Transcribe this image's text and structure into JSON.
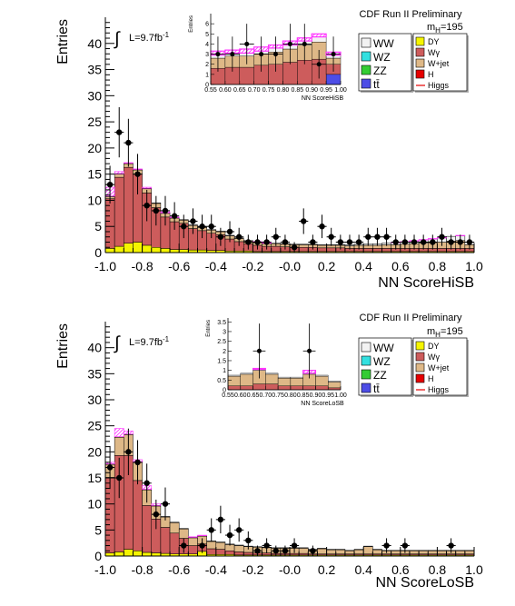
{
  "figure_label": "CDF Run II Preliminary",
  "mass_label": "m",
  "mass_sub": "H",
  "mass_value": "=195",
  "lumi_prefix": "L=9.7fb",
  "lumi_sup": "-1",
  "integral_glyph": "∫",
  "colors": {
    "WW": "#f2f2f2",
    "WZ": "#33e0e0",
    "ZZ": "#33cc33",
    "tt": "#4d4de6",
    "DY": "#f5f500",
    "Wgamma": "#cd5c5c",
    "Wjet": "#deb887",
    "H": "#e60000",
    "Higgs": "#ff33ff",
    "data": "#000000"
  },
  "chart_data": [
    {
      "type": "bar",
      "name": "HiSB",
      "xlabel": "NN ScoreHiSB",
      "ylabel": "Entries",
      "xlim": [
        -1.0,
        1.0
      ],
      "ylim": [
        0,
        45
      ],
      "x_ticks": [
        "-1.0",
        "-0.8",
        "-0.6",
        "-0.4",
        "-0.2",
        "-0.0",
        "0.2",
        "0.4",
        "0.6",
        "0.8",
        "1.0"
      ],
      "y_ticks": [
        "0",
        "5",
        "10",
        "15",
        "20",
        "25",
        "30",
        "35",
        "40"
      ],
      "legend": {
        "left": [
          {
            "key": "WW",
            "label": "WW"
          },
          {
            "key": "WZ",
            "label": "WZ"
          },
          {
            "key": "ZZ",
            "label": "ZZ"
          },
          {
            "key": "tt",
            "label": "tt̄"
          }
        ],
        "right": [
          {
            "key": "DY",
            "label": "DY"
          },
          {
            "key": "Wgamma",
            "label": "Wγ"
          },
          {
            "key": "Wjet",
            "label": "W+jet"
          },
          {
            "key": "H",
            "label": "H"
          },
          {
            "key": "Higgs",
            "label": "Higgs"
          }
        ]
      },
      "bins": 40,
      "dy": [
        0.8,
        1.2,
        1.8,
        2.0,
        1.4,
        1.0,
        0.8,
        0.6,
        0.6,
        0.5,
        0.5,
        0.4,
        0.4,
        0.3,
        0.3,
        0.3,
        0.2,
        0.2,
        0.2,
        0.2,
        0.2,
        0.2,
        0.2,
        0.2,
        0.2,
        0.2,
        0.2,
        0.2,
        0.2,
        0.2,
        0.2,
        0.2,
        0.2,
        0.2,
        0.2,
        0.2,
        0.2,
        0.2,
        0.2,
        0.2
      ],
      "wgamma": [
        9.5,
        13.2,
        14.5,
        13.0,
        10.0,
        7.6,
        6.0,
        5.3,
        5.0,
        4.1,
        3.7,
        3.3,
        3.0,
        2.3,
        1.8,
        1.4,
        1.2,
        1.0,
        1.0,
        0.9,
        0.8,
        0.8,
        0.8,
        0.7,
        0.7,
        0.7,
        0.6,
        0.6,
        0.6,
        0.6,
        0.6,
        0.6,
        0.6,
        0.6,
        0.6,
        0.6,
        0.6,
        0.6,
        0.6,
        0.6
      ],
      "wjet": [
        0.4,
        0.6,
        0.7,
        0.8,
        0.8,
        0.8,
        0.7,
        0.7,
        0.6,
        0.6,
        0.6,
        0.6,
        0.6,
        0.6,
        0.6,
        0.5,
        0.5,
        0.5,
        0.5,
        0.5,
        0.5,
        0.5,
        0.5,
        0.5,
        0.5,
        0.5,
        0.5,
        0.6,
        0.6,
        0.6,
        0.7,
        0.7,
        0.8,
        0.9,
        1.0,
        1.1,
        1.2,
        1.4,
        1.5,
        0.7
      ],
      "ww": [
        0.1,
        0.1,
        0.1,
        0.1,
        0.1,
        0.1,
        0.1,
        0.1,
        0.1,
        0.1,
        0.1,
        0.1,
        0.1,
        0.1,
        0.1,
        0.1,
        0.1,
        0.1,
        0.1,
        0.1,
        0.1,
        0.1,
        0.1,
        0.1,
        0.1,
        0.1,
        0.2,
        0.2,
        0.2,
        0.3,
        0.3,
        0.4,
        0.4,
        0.5,
        0.6,
        0.7,
        0.8,
        0.9,
        0.9,
        0.5
      ],
      "higgs": [
        12.5,
        15.5,
        17.2,
        16.0,
        12.5,
        9.2,
        7.8,
        6.8,
        6.2,
        5.1,
        4.7,
        4.1,
        3.8,
        3.1,
        2.7,
        2.3,
        2.1,
        1.9,
        1.8,
        1.7,
        1.6,
        1.6,
        1.6,
        1.5,
        1.5,
        1.5,
        1.5,
        1.6,
        1.6,
        1.7,
        1.8,
        2.0,
        2.1,
        2.3,
        2.5,
        2.7,
        2.9,
        3.1,
        3.3,
        1.8
      ],
      "data": {
        "x": [
          -0.975,
          -0.925,
          -0.875,
          -0.825,
          -0.775,
          -0.725,
          -0.675,
          -0.625,
          -0.575,
          -0.525,
          -0.475,
          -0.425,
          -0.375,
          -0.325,
          -0.275,
          -0.225,
          -0.175,
          -0.125,
          -0.075,
          -0.025,
          0.025,
          0.075,
          0.125,
          0.175,
          0.225,
          0.275,
          0.325,
          0.375,
          0.425,
          0.475,
          0.525,
          0.575,
          0.625,
          0.675,
          0.725,
          0.775,
          0.825,
          0.875,
          0.925,
          0.975
        ],
        "y": [
          13,
          23,
          21,
          15,
          9,
          8,
          8,
          7,
          5,
          6,
          5,
          5,
          3,
          4,
          3,
          2,
          2,
          2,
          3,
          2,
          1,
          6,
          2,
          5,
          3,
          2,
          2,
          2,
          3,
          3,
          3,
          2,
          2,
          2,
          2,
          2,
          3,
          2,
          2,
          2
        ]
      },
      "inset": {
        "xlabel": "NN ScoreHiSB",
        "ylabel": "Entries",
        "xlim": [
          0.55,
          1.0
        ],
        "ylim": [
          0,
          7
        ],
        "x_ticks": [
          "0.55",
          "0.60",
          "0.65",
          "0.70",
          "0.75",
          "0.80",
          "0.85",
          "0.90",
          "0.95",
          "1.00"
        ],
        "y_ticks": [
          "0",
          "1",
          "2",
          "3",
          "4",
          "5",
          "6"
        ],
        "bins": 9,
        "wgamma": [
          1.6,
          1.7,
          1.7,
          1.9,
          2.0,
          2.2,
          2.4,
          2.5,
          1.0
        ],
        "wjet": [
          1.0,
          1.1,
          1.1,
          1.1,
          1.2,
          1.3,
          1.5,
          1.7,
          0.6
        ],
        "ww": [
          0.3,
          0.3,
          0.3,
          0.3,
          0.4,
          0.4,
          0.4,
          0.5,
          0.3
        ],
        "tt": [
          0.0,
          0.0,
          0.0,
          0.0,
          0.0,
          0.0,
          0.0,
          0.0,
          1.0
        ],
        "higgs": [
          3.3,
          3.4,
          3.5,
          3.7,
          3.9,
          4.3,
          4.6,
          5.0,
          3.2
        ],
        "data": {
          "x": [
            0.575,
            0.625,
            0.675,
            0.725,
            0.775,
            0.825,
            0.875,
            0.925,
            0.975
          ],
          "y": [
            3,
            3,
            4,
            3,
            3,
            4,
            4,
            2,
            3
          ]
        }
      }
    },
    {
      "type": "bar",
      "name": "LoSB",
      "xlabel": "NN ScoreLoSB",
      "ylabel": "Entries",
      "xlim": [
        -1.0,
        1.0
      ],
      "ylim": [
        0,
        45
      ],
      "x_ticks": [
        "-1.0",
        "-0.8",
        "-0.6",
        "-0.4",
        "-0.2",
        "-0.0",
        "0.2",
        "0.4",
        "0.6",
        "0.8",
        "1.0"
      ],
      "y_ticks": [
        "0",
        "5",
        "10",
        "15",
        "20",
        "25",
        "30",
        "35",
        "40"
      ],
      "legend": {
        "left": [
          {
            "key": "WW",
            "label": "WW"
          },
          {
            "key": "WZ",
            "label": "WZ"
          },
          {
            "key": "ZZ",
            "label": "ZZ"
          },
          {
            "key": "tt",
            "label": "tt̄"
          }
        ],
        "right": [
          {
            "key": "DY",
            "label": "DY"
          },
          {
            "key": "Wgamma",
            "label": "Wγ"
          },
          {
            "key": "Wjet",
            "label": "W+jet"
          },
          {
            "key": "H",
            "label": "H"
          },
          {
            "key": "Higgs",
            "label": "Higgs"
          }
        ]
      },
      "bins": 40,
      "dy": [
        0.6,
        0.8,
        1.3,
        1.0,
        0.7,
        0.6,
        0.5,
        0.4,
        0.4,
        0.4,
        0.9,
        0.3,
        0.3,
        0.3,
        0.2,
        0.2,
        0.2,
        0.2,
        0.2,
        0.2,
        0.2,
        0.2,
        0.2,
        0.2,
        0.2,
        0.2,
        0.2,
        0.2,
        0.2,
        0.2,
        0.2,
        0.2,
        0.2,
        0.2,
        0.2,
        0.2,
        0.2,
        0.2,
        0.2,
        0.2
      ],
      "wgamma": [
        14.5,
        18.5,
        18.0,
        13.5,
        9.0,
        6.5,
        5.0,
        4.0,
        3.0,
        1.6,
        1.4,
        1.1,
        1.0,
        0.7,
        0.6,
        0.5,
        0.4,
        0.4,
        0.3,
        0.3,
        0.3,
        0.3,
        0.2,
        0.2,
        0.2,
        0.2,
        0.2,
        0.2,
        0.2,
        0.2,
        0.2,
        0.2,
        0.2,
        0.2,
        0.2,
        0.2,
        0.2,
        0.2,
        0.2,
        0.2
      ],
      "wjet": [
        2.5,
        3.5,
        4.0,
        3.5,
        3.0,
        2.5,
        2.0,
        2.0,
        1.8,
        1.5,
        1.5,
        1.4,
        1.3,
        1.2,
        1.2,
        1.1,
        1.1,
        1.0,
        1.0,
        1.0,
        1.0,
        1.0,
        0.8,
        1.0,
        0.8,
        0.8,
        0.6,
        0.8,
        1.4,
        0.8,
        0.6,
        0.6,
        0.6,
        0.6,
        0.6,
        0.6,
        0.6,
        0.6,
        0.6,
        0.6
      ],
      "ww": [
        0.1,
        0.1,
        0.1,
        0.1,
        0.1,
        0.1,
        0.1,
        0.1,
        0.1,
        0.1,
        0.1,
        0.1,
        0.1,
        0.1,
        0.1,
        0.1,
        0.1,
        0.1,
        0.1,
        0.1,
        0.1,
        0.1,
        0.1,
        0.1,
        0.1,
        0.1,
        0.1,
        0.1,
        0.1,
        0.1,
        0.1,
        0.1,
        0.1,
        0.1,
        0.1,
        0.1,
        0.1,
        0.1,
        0.1,
        0.1
      ],
      "higgs": [
        18.0,
        24.5,
        24.0,
        18.5,
        13.5,
        10.0,
        7.6,
        6.5,
        5.3,
        3.7,
        4.0,
        2.9,
        2.7,
        2.3,
        2.1,
        1.9,
        1.8,
        1.7,
        1.6,
        1.6,
        1.6,
        1.6,
        1.3,
        1.5,
        1.3,
        1.3,
        1.1,
        1.3,
        1.9,
        1.3,
        1.1,
        1.1,
        1.1,
        1.1,
        1.1,
        1.1,
        1.1,
        1.1,
        1.1,
        1.1
      ],
      "data": {
        "x": [
          -0.975,
          -0.925,
          -0.875,
          -0.825,
          -0.775,
          -0.725,
          -0.675,
          -0.575,
          -0.475,
          -0.425,
          -0.375,
          -0.325,
          -0.275,
          -0.225,
          -0.175,
          -0.125,
          -0.075,
          -0.025,
          0.025,
          0.125,
          0.525,
          0.625,
          0.875
        ],
        "y": [
          17,
          15,
          20,
          18,
          14,
          8,
          10,
          2,
          2,
          5,
          7,
          4,
          5,
          3,
          1,
          2,
          1,
          1,
          2,
          1,
          2,
          2,
          2
        ]
      },
      "inset": {
        "xlabel": "NN ScoreLoSB",
        "ylabel": "Entries",
        "xlim": [
          0.55,
          1.0
        ],
        "ylim": [
          0,
          3.7
        ],
        "x_ticks": [
          "0.55",
          "0.60",
          "0.65",
          "0.70",
          "0.75",
          "0.80",
          "0.85",
          "0.90",
          "0.95",
          "1.00"
        ],
        "y_ticks": [
          "0",
          "0.5",
          "1",
          "1.5",
          "2",
          "2.5",
          "3",
          "3.5"
        ],
        "bins": 9,
        "wgamma": [
          0.2,
          0.2,
          0.3,
          0.3,
          0.2,
          0.2,
          0.2,
          0.2,
          0.1
        ],
        "wjet": [
          0.5,
          0.6,
          0.7,
          0.5,
          0.4,
          0.4,
          0.6,
          0.5,
          0.3
        ],
        "ww": [
          0.05,
          0.05,
          0.05,
          0.05,
          0.05,
          0.05,
          0.05,
          0.05,
          0.05
        ],
        "tt": [
          0,
          0,
          0,
          0,
          0,
          0,
          0,
          0,
          0
        ],
        "higgs": [
          0.75,
          0.8,
          1.1,
          0.85,
          0.65,
          0.65,
          1.0,
          0.75,
          0.45
        ],
        "data": {
          "x": [
            0.575,
            0.625,
            0.675,
            0.725,
            0.775,
            0.825,
            0.875,
            0.925,
            0.975
          ],
          "y": [
            0,
            0,
            2,
            0,
            0,
            0,
            2,
            0,
            0
          ]
        }
      }
    }
  ]
}
